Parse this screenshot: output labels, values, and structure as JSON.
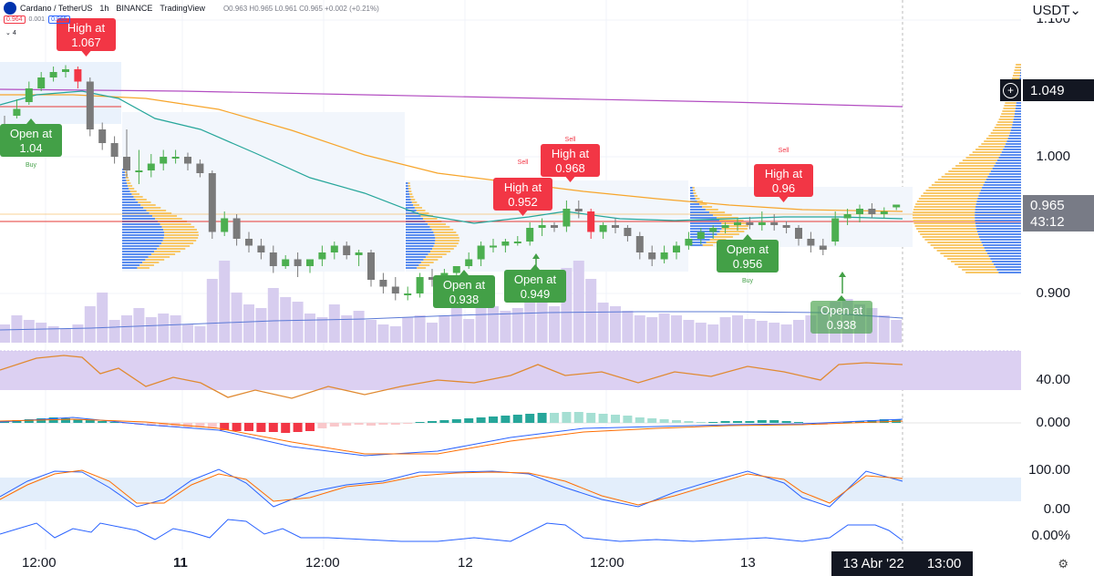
{
  "header": {
    "symbol": "Cardano / TetherUS",
    "interval": "1h",
    "exchange": "BINANCE",
    "source": "TradingView",
    "ohlc": "O0.963 H0.965 L0.961 C0.965 +0.002 (+0.21%)",
    "bid": "0.964",
    "spread": "0.001",
    "ask": "0.965",
    "indicator_count": "4"
  },
  "price_axis": {
    "currency": "USDT",
    "levels": [
      "1.100",
      "1.000",
      "0.900"
    ],
    "plus_label": "+",
    "level_1049": "1.049",
    "current_price": "0.965",
    "countdown": "43:12",
    "rsi_level": "40.00",
    "macd_level": "0.000",
    "stoch_high": "100.00",
    "stoch_low": "0.00",
    "osc_level": "0.00%"
  },
  "time_axis": {
    "labels": [
      "12:00",
      "11",
      "12:00",
      "12",
      "12:00",
      "13"
    ],
    "highlight_date": "13 Abr '22",
    "highlight_time": "13:00"
  },
  "annotations": [
    {
      "text": "High at 1.067",
      "line1": "High at",
      "line2": "1.067",
      "kind": "high"
    },
    {
      "text": "Open at 1.04",
      "line1": "Open at",
      "line2": "1.04",
      "kind": "open",
      "tag": "Buy"
    },
    {
      "text": "High at 0.952",
      "line1": "High at",
      "line2": "0.952",
      "kind": "high",
      "tag": "Sell"
    },
    {
      "text": "High at 0.968",
      "line1": "High at",
      "line2": "0.968",
      "kind": "high",
      "tag": "Sell"
    },
    {
      "text": "Open at 0.938",
      "line1": "Open at",
      "line2": "0.938",
      "kind": "open"
    },
    {
      "text": "Open at 0.949",
      "line1": "Open at",
      "line2": "0.949",
      "kind": "open"
    },
    {
      "text": "High at 0.96",
      "line1": "High at",
      "line2": "0.96",
      "kind": "high",
      "tag": "Sell"
    },
    {
      "text": "Open at 0.956",
      "line1": "Open at",
      "line2": "0.956",
      "kind": "open",
      "tag": "Buy"
    },
    {
      "text": "Open at 0.938",
      "line1": "Open at",
      "line2": "0.938",
      "kind": "open"
    }
  ],
  "colors": {
    "bull": "#4caf50",
    "bear": "#7a7a7a",
    "signal_red": "#f23645",
    "open_green": "#43a047",
    "ma_fast": "#26a69a",
    "ma_slow": "#f7a52b",
    "ma_long": "#b34ec2",
    "volume": "#d7cdef",
    "rsi_band": "#d9ccf0",
    "price_box": "#787b86",
    "level_box": "#131722"
  },
  "candles": [
    [
      1.02,
      1.03,
      1.015,
      1.01
    ],
    [
      1.03,
      1.042,
      1.035,
      1.028
    ],
    [
      1.04,
      1.055,
      1.05,
      1.038
    ],
    [
      1.05,
      1.062,
      1.058,
      1.048
    ],
    [
      1.058,
      1.066,
      1.062,
      1.055
    ],
    [
      1.062,
      1.067,
      1.064,
      1.058
    ],
    [
      1.064,
      1.066,
      1.055,
      1.05
    ],
    [
      1.055,
      1.058,
      1.02,
      1.015
    ],
    [
      1.02,
      1.025,
      1.01,
      1.005
    ],
    [
      1.01,
      1.015,
      1.0,
      0.995
    ],
    [
      1.0,
      1.02,
      0.99,
      0.985
    ],
    [
      0.99,
      1.005,
      0.99,
      0.98
    ],
    [
      0.99,
      1.002,
      0.995,
      0.985
    ],
    [
      0.995,
      1.005,
      1.0,
      0.99
    ],
    [
      1.0,
      1.005,
      1.0,
      0.995
    ],
    [
      1.0,
      1.003,
      0.995,
      0.99
    ],
    [
      0.995,
      0.998,
      0.988,
      0.985
    ],
    [
      0.988,
      0.99,
      0.945,
      0.94
    ],
    [
      0.945,
      0.96,
      0.955,
      0.942
    ],
    [
      0.955,
      0.958,
      0.94,
      0.935
    ],
    [
      0.94,
      0.945,
      0.935,
      0.93
    ],
    [
      0.935,
      0.94,
      0.93,
      0.925
    ],
    [
      0.93,
      0.935,
      0.92,
      0.915
    ],
    [
      0.92,
      0.928,
      0.925,
      0.918
    ],
    [
      0.925,
      0.93,
      0.92,
      0.912
    ],
    [
      0.92,
      0.925,
      0.925,
      0.915
    ],
    [
      0.925,
      0.935,
      0.93,
      0.92
    ],
    [
      0.93,
      0.938,
      0.935,
      0.925
    ],
    [
      0.935,
      0.938,
      0.928,
      0.925
    ],
    [
      0.928,
      0.932,
      0.93,
      0.92
    ],
    [
      0.93,
      0.932,
      0.91,
      0.905
    ],
    [
      0.91,
      0.915,
      0.905,
      0.9
    ],
    [
      0.905,
      0.912,
      0.9,
      0.895
    ],
    [
      0.9,
      0.905,
      0.9,
      0.895
    ],
    [
      0.9,
      0.915,
      0.912,
      0.897
    ],
    [
      0.912,
      0.918,
      0.91,
      0.905
    ],
    [
      0.91,
      0.918,
      0.915,
      0.905
    ],
    [
      0.915,
      0.92,
      0.92,
      0.91
    ],
    [
      0.92,
      0.93,
      0.925,
      0.918
    ],
    [
      0.925,
      0.938,
      0.935,
      0.92
    ],
    [
      0.935,
      0.94,
      0.935,
      0.93
    ],
    [
      0.935,
      0.94,
      0.938,
      0.93
    ],
    [
      0.938,
      0.942,
      0.938,
      0.935
    ],
    [
      0.938,
      0.952,
      0.948,
      0.935
    ],
    [
      0.948,
      0.955,
      0.95,
      0.942
    ],
    [
      0.95,
      0.952,
      0.948,
      0.945
    ],
    [
      0.949,
      0.968,
      0.962,
      0.945
    ],
    [
      0.962,
      0.968,
      0.96,
      0.955
    ],
    [
      0.96,
      0.962,
      0.945,
      0.94
    ],
    [
      0.945,
      0.952,
      0.95,
      0.94
    ],
    [
      0.95,
      0.955,
      0.948,
      0.944
    ],
    [
      0.948,
      0.95,
      0.942,
      0.938
    ],
    [
      0.942,
      0.945,
      0.93,
      0.925
    ],
    [
      0.93,
      0.935,
      0.925,
      0.92
    ],
    [
      0.925,
      0.935,
      0.93,
      0.922
    ],
    [
      0.93,
      0.938,
      0.935,
      0.925
    ],
    [
      0.935,
      0.945,
      0.94,
      0.932
    ],
    [
      0.94,
      0.948,
      0.945,
      0.936
    ],
    [
      0.945,
      0.95,
      0.948,
      0.94
    ],
    [
      0.948,
      0.952,
      0.95,
      0.944
    ],
    [
      0.95,
      0.955,
      0.952,
      0.946
    ],
    [
      0.952,
      0.956,
      0.95,
      0.947
    ],
    [
      0.95,
      0.96,
      0.952,
      0.946
    ],
    [
      0.952,
      0.958,
      0.95,
      0.946
    ],
    [
      0.95,
      0.953,
      0.948,
      0.944
    ],
    [
      0.948,
      0.95,
      0.94,
      0.935
    ],
    [
      0.94,
      0.945,
      0.935,
      0.93
    ],
    [
      0.935,
      0.94,
      0.932,
      0.928
    ],
    [
      0.938,
      0.96,
      0.955,
      0.935
    ],
    [
      0.955,
      0.962,
      0.958,
      0.95
    ],
    [
      0.958,
      0.965,
      0.962,
      0.952
    ],
    [
      0.962,
      0.966,
      0.958,
      0.955
    ],
    [
      0.958,
      0.963,
      0.96,
      0.955
    ],
    [
      0.963,
      0.965,
      0.965,
      0.961
    ]
  ]
}
